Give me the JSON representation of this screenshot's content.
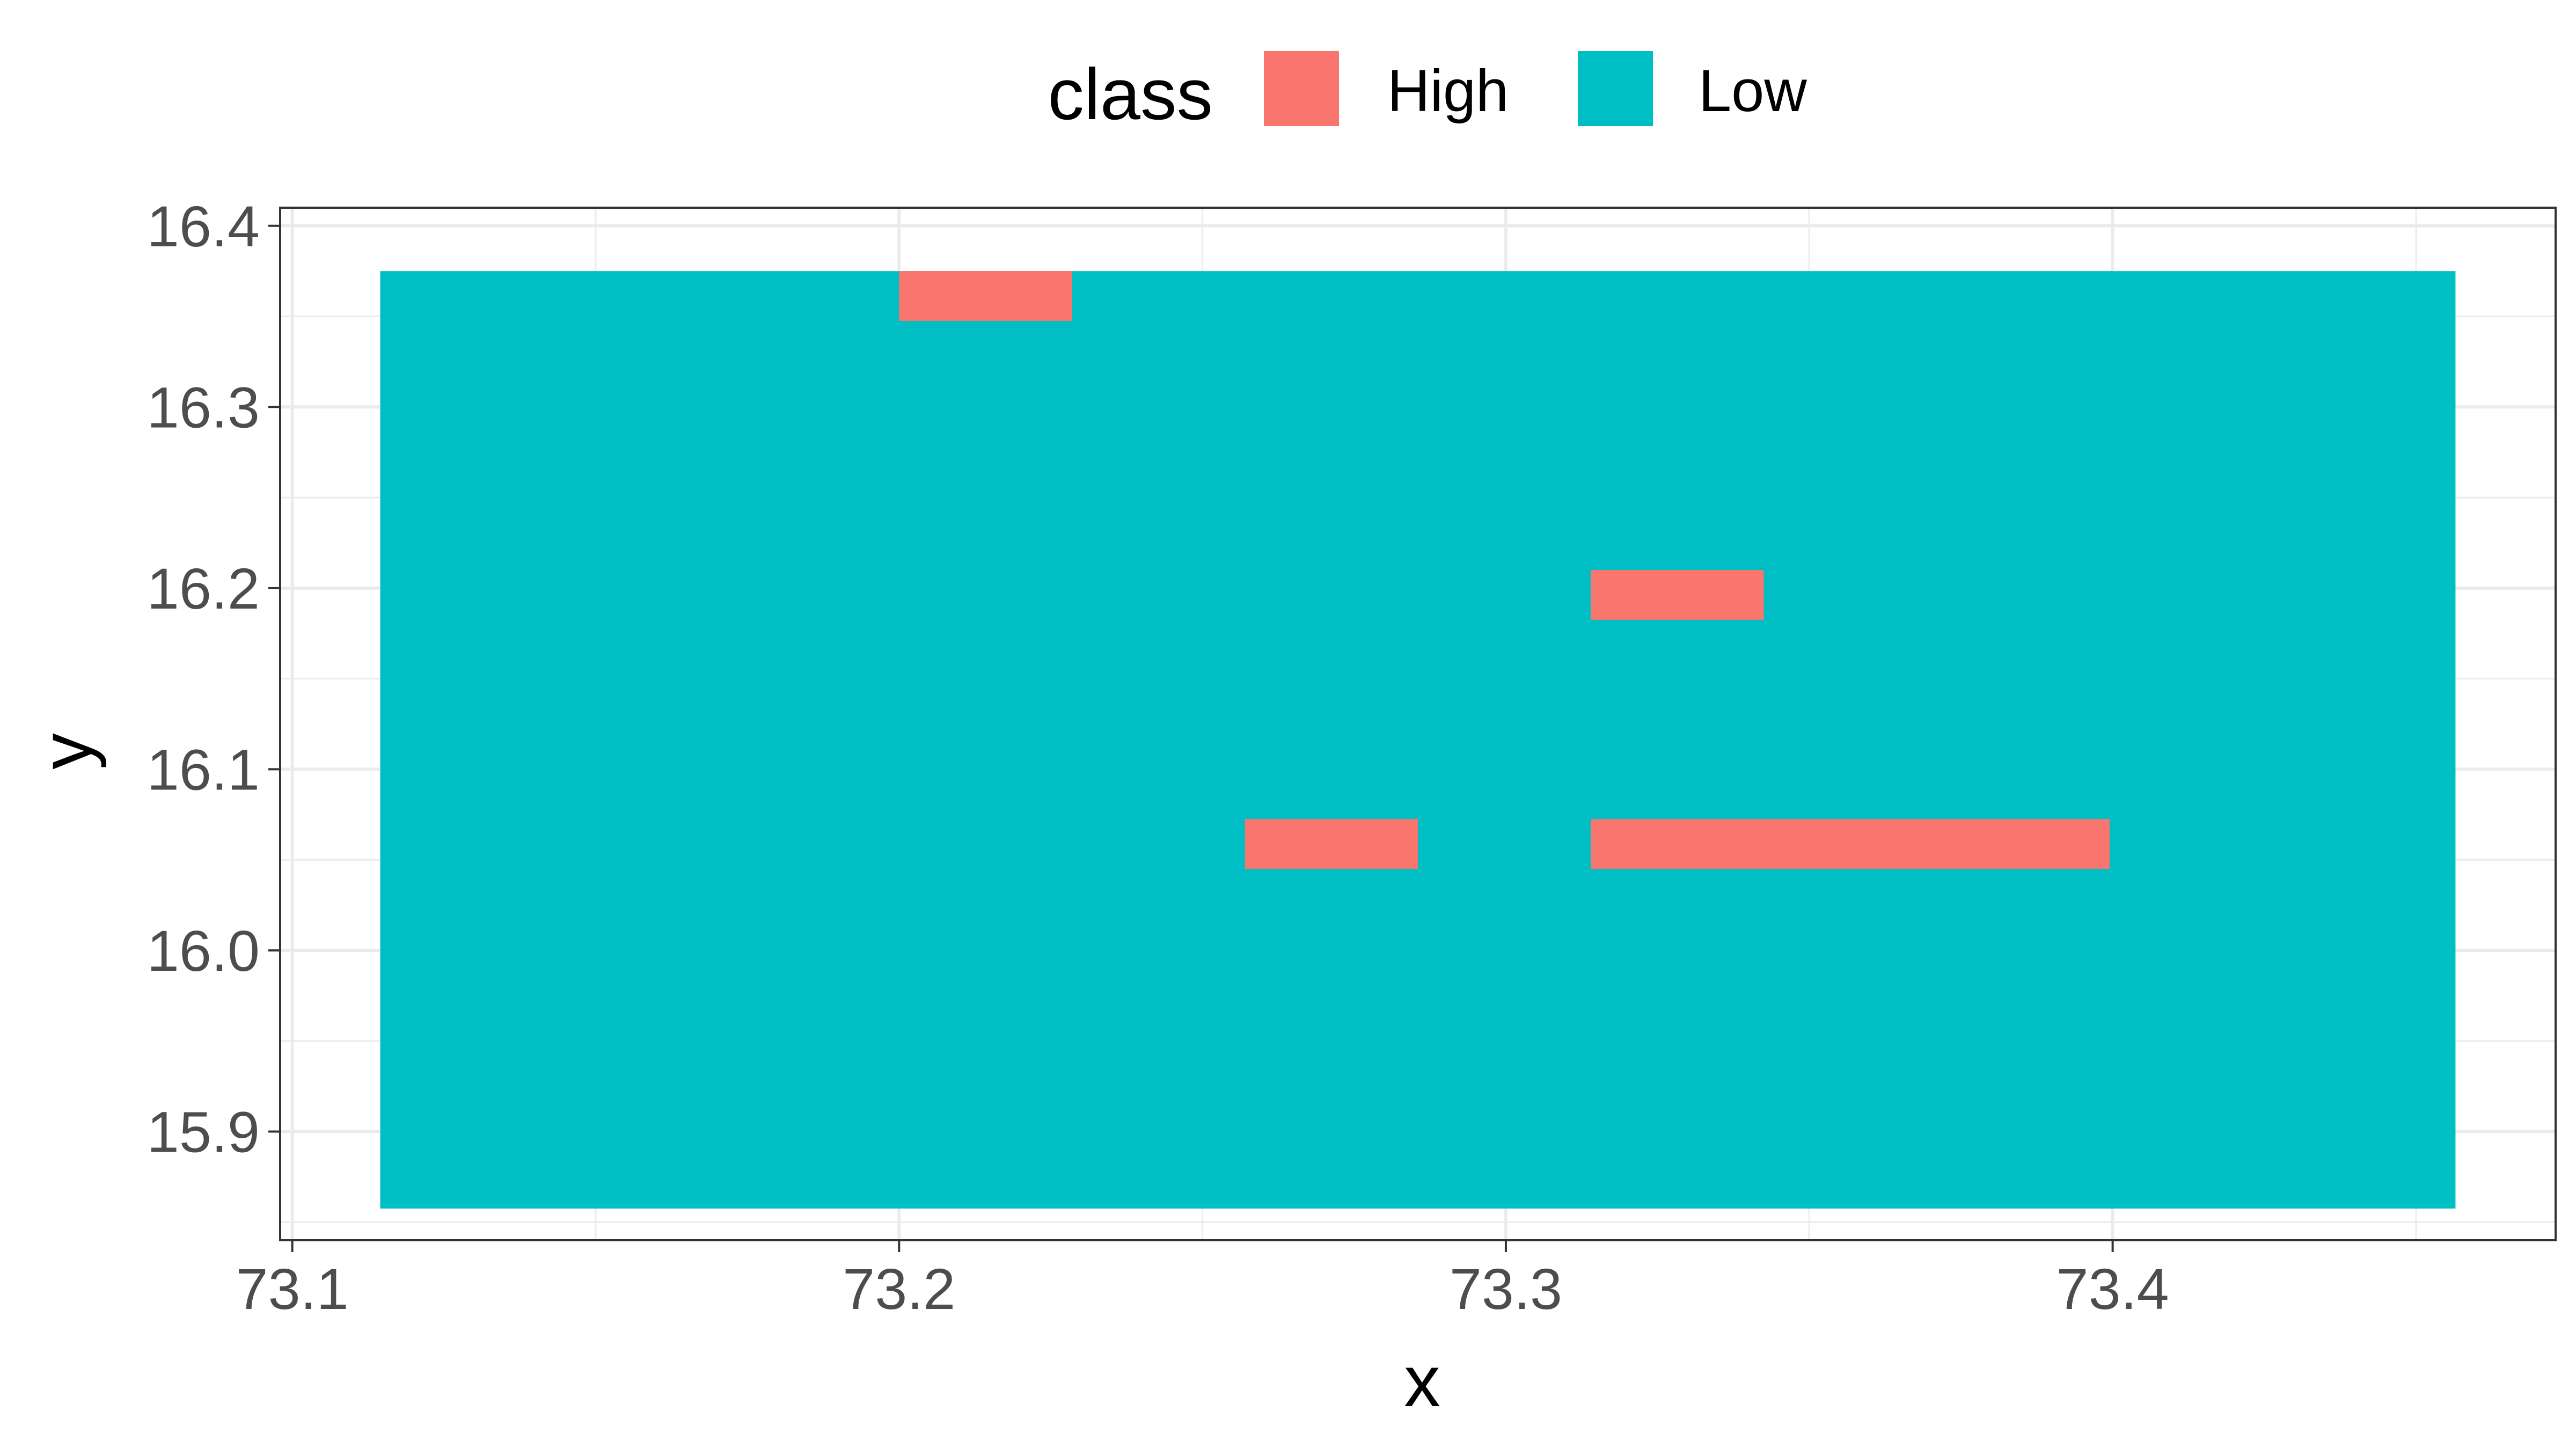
{
  "chart_data": {
    "type": "heatmap",
    "title": "",
    "xlabel": "x",
    "ylabel": "y",
    "xlim": [
      73.098,
      73.473
    ],
    "ylim": [
      15.84,
      16.41
    ],
    "x_ticks": [
      73.1,
      73.2,
      73.3,
      73.4
    ],
    "x_tick_labels": [
      "73.1",
      "73.2",
      "73.3",
      "73.4"
    ],
    "y_ticks": [
      15.9,
      16.0,
      16.1,
      16.2,
      16.3,
      16.4
    ],
    "y_tick_labels": [
      "15.9",
      "16.0",
      "16.1",
      "16.2",
      "16.3",
      "16.4"
    ],
    "grid": true,
    "legend": {
      "title": "class",
      "position": "top",
      "entries": [
        {
          "label": "High",
          "color": "#F8766D"
        },
        {
          "label": "Low",
          "color": "#00BFC4"
        }
      ]
    },
    "cell_width": 0.0285,
    "cell_height": 0.0275,
    "extent": {
      "x": [
        73.1145,
        73.4565
      ],
      "y": [
        15.8575,
        16.375
      ]
    },
    "background_class": "Low",
    "high_cells": [
      {
        "x": [
          73.2,
          73.2285
        ],
        "y": [
          16.3475,
          16.375
        ]
      },
      {
        "x": [
          73.314,
          73.3425
        ],
        "y": [
          16.1825,
          16.21
        ]
      },
      {
        "x": [
          73.257,
          73.2855
        ],
        "y": [
          16.045,
          16.0725
        ]
      },
      {
        "x": [
          73.314,
          73.3995
        ],
        "y": [
          16.045,
          16.0725
        ]
      }
    ]
  }
}
